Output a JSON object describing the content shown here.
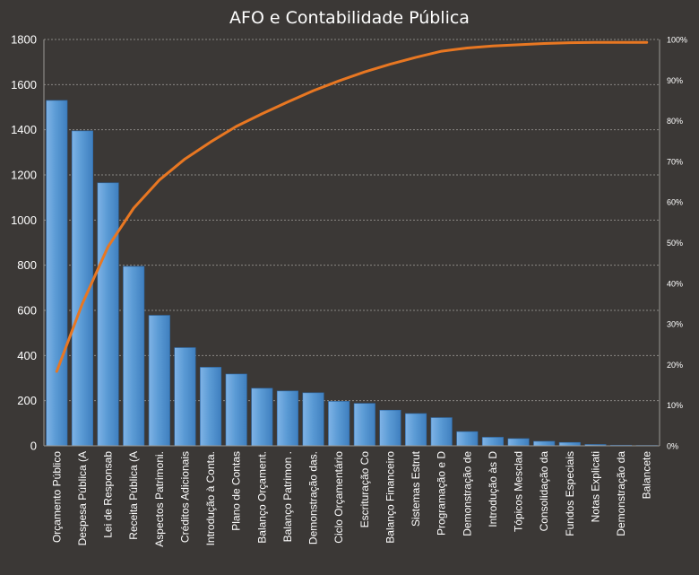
{
  "chart_data": {
    "type": "bar",
    "title": "AFO e Contabilidade Pública",
    "categories": [
      "Orçamento Público",
      "Despesa Pública (A",
      "Lei de Responsab",
      "Receita Pública (A",
      "Aspectos Patrimoni.",
      "Créditos Adicionais",
      "Introdução à Conta.",
      "Plano de Contas",
      "Balanço Orçament.",
      "Balanço Patrimon .",
      "Demonstração das.",
      "Ciclo Orçamentário",
      "Escrituração Co",
      "Balanço Financeiro",
      "Sistemas Estrut",
      "Programação e D",
      "Demonstração de",
      "Introdução às D",
      "Tópicos Mesclad",
      "Consolidação da",
      "Fundos Especiais",
      "Notas Explicati",
      "Demonstração da",
      "Balancete"
    ],
    "series": [
      {
        "type": "bar",
        "axis": "left",
        "color": "#5b9bd5",
        "values": [
          1530,
          1395,
          1165,
          795,
          578,
          435,
          348,
          318,
          255,
          243,
          235,
          197,
          188,
          158,
          143,
          125,
          63,
          38,
          32,
          20,
          15,
          6,
          3,
          2
        ]
      },
      {
        "type": "line",
        "axis": "right",
        "color": "#e87722",
        "values": [
          18.3,
          35.0,
          49.0,
          58.5,
          65.4,
          70.6,
          74.8,
          78.6,
          81.7,
          84.6,
          87.4,
          89.8,
          92.0,
          93.9,
          95.6,
          97.1,
          97.9,
          98.4,
          98.7,
          99.0,
          99.2,
          99.3,
          99.3,
          99.3
        ]
      }
    ],
    "y_left": {
      "min": 0,
      "max": 1800,
      "step": 200,
      "ticks": [
        "0",
        "200",
        "400",
        "600",
        "800",
        "1000",
        "1200",
        "1400",
        "1600",
        "1800"
      ]
    },
    "y_right": {
      "min": 0,
      "max": 100,
      "step": 10,
      "ticks": [
        "0%",
        "10%",
        "20%",
        "30%",
        "40%",
        "50%",
        "60%",
        "70%",
        "80%",
        "90%",
        "100%"
      ]
    },
    "grid": true,
    "legend": "none",
    "colors": {
      "background": "#3b3836",
      "bar": "#5b9bd5",
      "line": "#e87722",
      "text": "#ffffff"
    }
  }
}
